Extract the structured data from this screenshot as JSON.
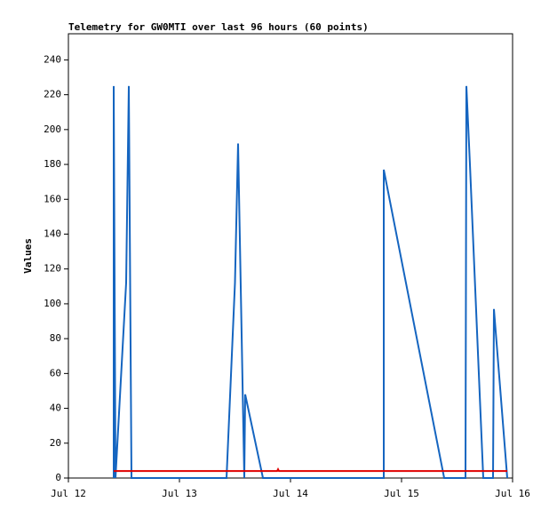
{
  "chart_data": {
    "type": "line",
    "title": "Telemetry for GW0MTI over last 96 hours (60 points)",
    "ylabel": "Values",
    "xlim": [
      0,
      4
    ],
    "ylim": [
      0,
      255
    ],
    "xticks": [
      {
        "value": 0,
        "label": "Jul 12"
      },
      {
        "value": 1,
        "label": "Jul 13"
      },
      {
        "value": 2,
        "label": "Jul 14"
      },
      {
        "value": 3,
        "label": "Jul 15"
      },
      {
        "value": 4,
        "label": "Jul 16"
      }
    ],
    "yticks": [
      0,
      20,
      40,
      60,
      80,
      100,
      120,
      140,
      160,
      180,
      200,
      220,
      240
    ],
    "series": [
      {
        "color": "#1565c0",
        "x": [
          0.408,
          0.408,
          0.424,
          0.52,
          0.544,
          0.568,
          1.424,
          1.5,
          1.528,
          1.584,
          1.592,
          1.752,
          2.84,
          2.84,
          3.384,
          3.576,
          3.584,
          3.616,
          3.736,
          3.824,
          3.832,
          3.952
        ],
        "values": [
          0,
          225,
          0,
          112,
          225,
          0,
          0,
          112,
          192,
          0,
          48,
          0,
          0,
          177,
          0,
          0,
          225,
          180,
          0,
          0,
          97,
          0
        ]
      },
      {
        "color": "#e00000",
        "x": [
          0.408,
          1.88,
          1.888,
          1.896,
          3.952
        ],
        "values": [
          4,
          4,
          5,
          4,
          4
        ]
      }
    ]
  }
}
